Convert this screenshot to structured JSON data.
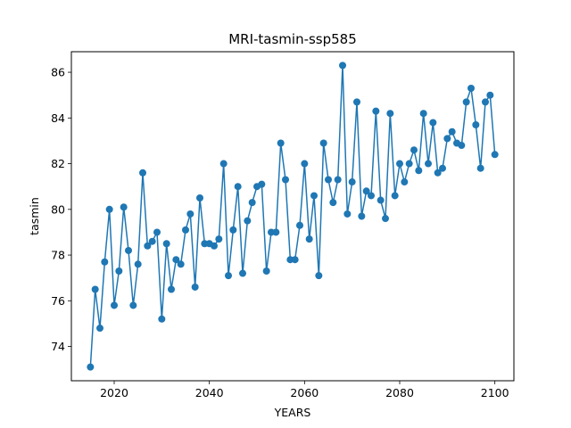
{
  "chart_data": {
    "type": "line",
    "title": "MRI-tasmin-ssp585",
    "xlabel": "YEARS",
    "ylabel": "tasmin",
    "xlim": [
      2011,
      2104
    ],
    "ylim": [
      72.5,
      86.9
    ],
    "x_ticks": [
      2020,
      2040,
      2060,
      2080,
      2100
    ],
    "y_ticks": [
      74,
      76,
      78,
      80,
      82,
      84,
      86
    ],
    "grid": false,
    "legend": "none",
    "markers": true,
    "color": "#1f77b4",
    "x": [
      2015,
      2016,
      2017,
      2018,
      2019,
      2020,
      2021,
      2022,
      2023,
      2024,
      2025,
      2026,
      2027,
      2028,
      2029,
      2030,
      2031,
      2032,
      2033,
      2034,
      2035,
      2036,
      2037,
      2038,
      2039,
      2040,
      2041,
      2042,
      2043,
      2044,
      2045,
      2046,
      2047,
      2048,
      2049,
      2050,
      2051,
      2052,
      2053,
      2054,
      2055,
      2056,
      2057,
      2058,
      2059,
      2060,
      2061,
      2062,
      2063,
      2064,
      2065,
      2066,
      2067,
      2068,
      2069,
      2070,
      2071,
      2072,
      2073,
      2074,
      2075,
      2076,
      2077,
      2078,
      2079,
      2080,
      2081,
      2082,
      2083,
      2084,
      2085,
      2086,
      2087,
      2088,
      2089,
      2090,
      2091,
      2092,
      2093,
      2094,
      2095,
      2096,
      2097,
      2098,
      2099,
      2100
    ],
    "y": [
      73.1,
      76.5,
      74.8,
      77.7,
      80.0,
      75.8,
      77.3,
      80.1,
      78.2,
      75.8,
      77.6,
      81.6,
      78.4,
      78.6,
      79.0,
      75.2,
      78.5,
      76.5,
      77.8,
      77.6,
      79.1,
      79.8,
      76.6,
      80.5,
      78.5,
      78.5,
      78.4,
      78.7,
      82.0,
      77.1,
      79.1,
      81.0,
      77.2,
      79.5,
      80.3,
      81.0,
      81.1,
      77.3,
      79.0,
      79.0,
      82.9,
      81.3,
      77.8,
      77.8,
      79.3,
      82.0,
      78.7,
      80.6,
      77.1,
      82.9,
      81.3,
      80.3,
      81.3,
      86.3,
      79.8,
      81.2,
      84.7,
      79.7,
      80.8,
      80.6,
      84.3,
      80.4,
      79.6,
      84.2,
      80.6,
      82.0,
      81.2,
      82.0,
      82.6,
      81.7,
      84.2,
      82.0,
      83.8,
      81.6,
      81.8,
      83.1,
      83.4,
      82.9,
      82.8,
      84.7,
      85.3,
      83.7,
      81.8,
      84.7,
      85.0,
      82.4
    ]
  }
}
